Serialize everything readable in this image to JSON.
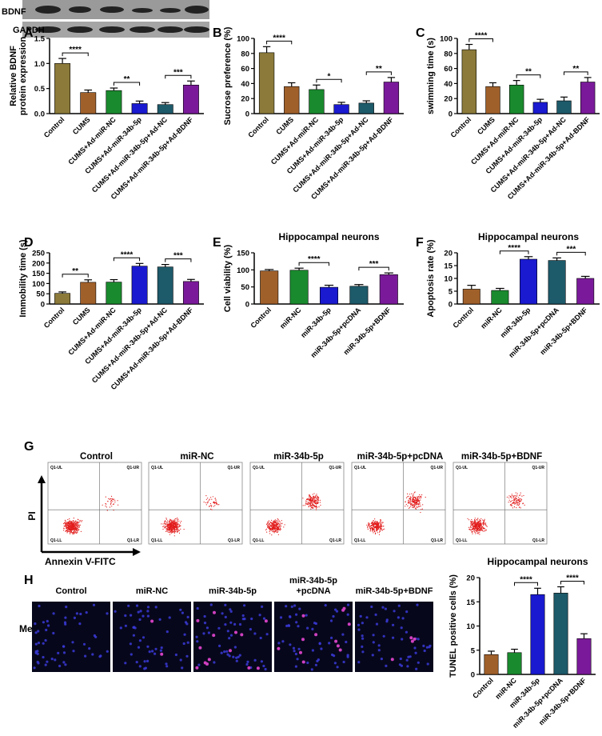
{
  "figure": {
    "panel_labels": [
      "A",
      "B",
      "C",
      "D",
      "E",
      "F",
      "G",
      "H"
    ],
    "blot": {
      "labels": [
        "BDNF",
        "GAPDH"
      ]
    },
    "flow": {
      "titles": [
        "Control",
        "miR-NC",
        "miR-34b-5p",
        "miR-34b-5p+pcDNA",
        "miR-34b-5p+BDNF"
      ],
      "quadrants": [
        "Q1-UL",
        "Q1-UR",
        "Q1-LL",
        "Q1-LR"
      ],
      "y_label": "PI",
      "x_label": "Annexin V-FITC"
    },
    "images": {
      "row_label": "Merge",
      "titles": [
        [
          "Control"
        ],
        [
          "miR-NC"
        ],
        [
          "miR-34b-5p"
        ],
        [
          "miR-34b-5p",
          "+pcDNA"
        ],
        [
          "miR-34b-5p+BDNF"
        ]
      ]
    }
  },
  "chart_data": [
    {
      "type": "bar",
      "ylabel": [
        "Relative BDNF",
        "protein expression"
      ],
      "categories": [
        "Control",
        "CUMS",
        "CUMS+Ad-miR-NC",
        "CUMS+Ad-miR-34b-5p",
        "CUMS+Ad-miR-34b-5p+Ad-NC",
        "CUMS+Ad-miR-34b-5p+Ad-BDNF"
      ],
      "values": [
        1.0,
        0.42,
        0.46,
        0.2,
        0.18,
        0.57
      ],
      "errors": [
        0.1,
        0.05,
        0.05,
        0.05,
        0.04,
        0.08
      ],
      "colors": [
        "#8b7a3a",
        "#a0602a",
        "#1a8a2e",
        "#1a1ad0",
        "#1d5a6a",
        "#7a1a9a"
      ],
      "ylim": [
        0,
        1.5
      ],
      "yticks": [
        {
          "value": 0,
          "label": "0.0"
        },
        0.5,
        {
          "value": 1,
          "label": "1.0"
        },
        1.5
      ],
      "significance": [
        "****",
        "**",
        "***"
      ]
    },
    {
      "type": "bar",
      "ylabel": [
        "Sucrose preference (%)"
      ],
      "categories": [
        "Control",
        "CUMS",
        "CUMS+Ad-miR-NC",
        "CUMS+Ad-miR-34b-5p",
        "CUMS+Ad-miR-34b-5p+Ad-NC",
        "CUMS+Ad-miR-34b-5p+Ad-BDNF"
      ],
      "values": [
        81,
        36,
        32,
        12,
        14,
        42
      ],
      "errors": [
        8,
        5,
        6,
        3,
        3,
        6
      ],
      "colors": [
        "#8b7a3a",
        "#a0602a",
        "#1a8a2e",
        "#1a1ad0",
        "#1d5a6a",
        "#7a1a9a"
      ],
      "ylim": [
        0,
        100
      ],
      "yticks": [
        0,
        20,
        40,
        60,
        80,
        100
      ],
      "significance": [
        "****",
        "*",
        "**"
      ]
    },
    {
      "type": "bar",
      "ylabel": [
        "swimming time (s)"
      ],
      "categories": [
        "Control",
        "CUMS",
        "CUMS+Ad-miR-NC",
        "CUMS+Ad-miR-34b-5p",
        "CUMS+Ad-miR-34b-5p+Ad-NC",
        "CUMS+Ad-miR-34b-5p+Ad-BDNF"
      ],
      "values": [
        85,
        36,
        38,
        15,
        17,
        42
      ],
      "errors": [
        7,
        5,
        6,
        4,
        5,
        6
      ],
      "colors": [
        "#8b7a3a",
        "#a0602a",
        "#1a8a2e",
        "#1a1ad0",
        "#1d5a6a",
        "#7a1a9a"
      ],
      "ylim": [
        0,
        100
      ],
      "yticks": [
        0,
        20,
        40,
        60,
        80,
        100
      ],
      "significance": [
        "****",
        "**",
        "**"
      ]
    },
    {
      "type": "bar",
      "ylabel": [
        "Immobility time (s)"
      ],
      "categories": [
        "Control",
        "CUMS",
        "CUMS+Ad-miR-NC",
        "CUMS+Ad-miR-34b-5p",
        "CUMS+Ad-miR-34b-5p+Ad-NC",
        "CUMS+Ad-miR-34b-5p+Ad-BDNF"
      ],
      "values": [
        52,
        106,
        107,
        185,
        181,
        110
      ],
      "errors": [
        7,
        12,
        12,
        13,
        12,
        10
      ],
      "colors": [
        "#8b7a3a",
        "#a0602a",
        "#1a8a2e",
        "#1a1ad0",
        "#1d5a6a",
        "#7a1a9a"
      ],
      "ylim": [
        0,
        250
      ],
      "yticks": [
        0,
        50,
        100,
        150,
        200,
        250
      ],
      "significance": [
        "**",
        "****",
        "***"
      ]
    },
    {
      "type": "bar",
      "title": "Hippocampal neurons",
      "ylabel": [
        "Cell viability (%)"
      ],
      "categories": [
        "Control",
        "miR-NC",
        "miR-34b-5p",
        "miR-34b-5p+pcDNA",
        "miR-34b-5p+BDNF"
      ],
      "values": [
        97,
        99,
        49,
        52,
        86
      ],
      "errors": [
        4,
        6,
        6,
        5,
        5
      ],
      "colors": [
        "#a0602a",
        "#1a8a2e",
        "#1a1ad0",
        "#1d5a6a",
        "#7a1a9a"
      ],
      "ylim": [
        0,
        150
      ],
      "yticks": [
        0,
        50,
        100,
        150
      ],
      "significance": [
        "****",
        "***"
      ]
    },
    {
      "type": "bar",
      "title": "Hippocampal neurons",
      "ylabel": [
        "Apoptosis rate (%)"
      ],
      "categories": [
        "Control",
        "miR-NC",
        "miR-34b-5p",
        "miR-34b-5p+pcDNA",
        "miR-34b-5p+BDNF"
      ],
      "values": [
        5.8,
        5.3,
        17.5,
        17.0,
        10.0
      ],
      "errors": [
        1.5,
        0.8,
        1.0,
        1.0,
        0.8
      ],
      "colors": [
        "#a0602a",
        "#1a8a2e",
        "#1a1ad0",
        "#1d5a6a",
        "#7a1a9a"
      ],
      "ylim": [
        0,
        20
      ],
      "yticks": [
        0,
        5,
        10,
        15,
        20
      ],
      "significance": [
        "****",
        "***"
      ]
    },
    {
      "type": "bar",
      "title": "Hippocampal neurons",
      "ylabel": [
        "TUNEL positive cells (%)"
      ],
      "categories": [
        "Control",
        "miR-NC",
        "miR-34b-5p",
        "miR-34b-5p+pcDNA",
        "miR-34b-5p+BDNF"
      ],
      "values": [
        4.1,
        4.5,
        16.5,
        16.8,
        7.4
      ],
      "errors": [
        0.7,
        0.7,
        1.3,
        1.3,
        1.0
      ],
      "colors": [
        "#a0602a",
        "#1a8a2e",
        "#1a1ad0",
        "#1d5a6a",
        "#7a1a9a"
      ],
      "ylim": [
        0,
        20
      ],
      "yticks": [
        0,
        5,
        10,
        15,
        20
      ],
      "significance": [
        "****",
        "****"
      ]
    }
  ]
}
